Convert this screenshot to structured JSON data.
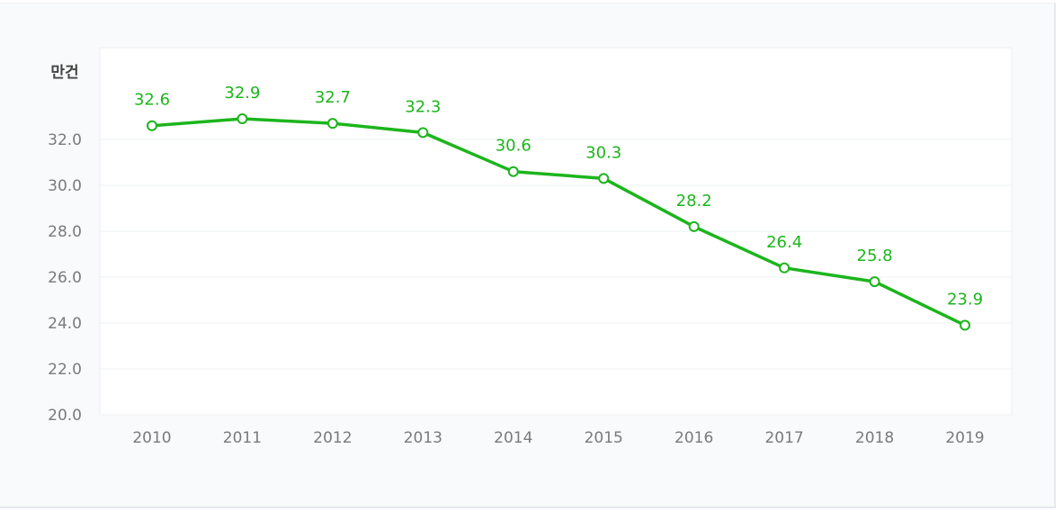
{
  "chart_data": {
    "type": "line",
    "title": "",
    "ylabel": "만건",
    "xlabel": "",
    "x": [
      "2010",
      "2011",
      "2012",
      "2013",
      "2014",
      "2015",
      "2016",
      "2017",
      "2018",
      "2019"
    ],
    "values": [
      32.6,
      32.9,
      32.7,
      32.3,
      30.6,
      30.3,
      28.2,
      26.4,
      25.8,
      23.9
    ],
    "value_labels": [
      "32.6",
      "32.9",
      "32.7",
      "32.3",
      "30.6",
      "30.3",
      "28.2",
      "26.4",
      "25.8",
      "23.9"
    ],
    "ylim": [
      20,
      36
    ],
    "yticks": [
      20,
      22,
      24,
      26,
      28,
      30,
      32
    ],
    "ytick_labels": [
      "20.0",
      "22.0",
      "24.0",
      "26.0",
      "28.0",
      "30.0",
      "32.0"
    ],
    "grid": true,
    "series_color": "#1cb51c"
  }
}
